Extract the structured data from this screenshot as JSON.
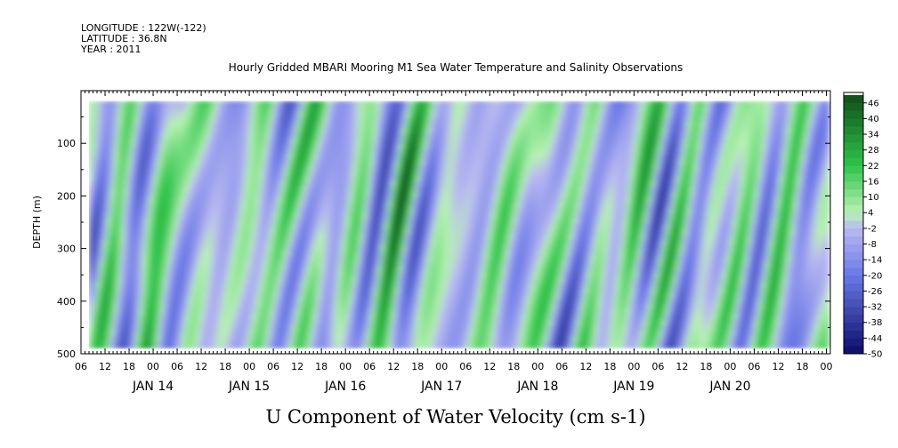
{
  "header": {
    "longitude": "LONGITUDE : 122W(-122)",
    "latitude": "LATITUDE : 36.8N",
    "year": "YEAR : 2011"
  },
  "chart_data": {
    "type": "heatmap",
    "title": "Hourly Gridded MBARI Mooring M1 Sea Water Temperature and Salinity Observations",
    "xlabel": "U Component of Water Velocity (cm s-1)",
    "ylabel": "DEPTH (m)",
    "x_axis": {
      "start": "2011-01-13T06:00",
      "end": "2011-01-21T01:00",
      "hour_tick_labels": [
        "06",
        "12",
        "18",
        "00",
        "06",
        "12",
        "18",
        "00",
        "06",
        "12",
        "18",
        "00",
        "06",
        "12",
        "18",
        "00",
        "06",
        "12",
        "18",
        "00",
        "06",
        "12",
        "18",
        "00",
        "06",
        "12",
        "18",
        "00",
        "06",
        "12",
        "18",
        "00"
      ],
      "day_labels": [
        "JAN 14",
        "JAN 15",
        "JAN 16",
        "JAN 17",
        "JAN 18",
        "JAN 19",
        "JAN 20"
      ],
      "data_start": "2011-01-13T08:00",
      "data_end": "2011-01-21T01:00"
    },
    "y_axis": {
      "range": [
        0,
        500
      ],
      "inverted": true,
      "tick_labels": [
        "100",
        "200",
        "300",
        "400",
        "500"
      ],
      "data_depth_min": 20,
      "data_depth_max": 490
    },
    "colorbar": {
      "range": [
        -50,
        50
      ],
      "step": 3,
      "tick_labels": [
        "46",
        "40",
        "34",
        "28",
        "22",
        "16",
        "10",
        "4",
        "-2",
        "-8",
        "-14",
        "-20",
        "-26",
        "-32",
        "-38",
        "-44",
        "-50"
      ],
      "colors": {
        "strong_positive": "#0f4a18",
        "positive": "#2fc44a",
        "weak_positive": "#b8f2b4",
        "weak_negative": "#b8b8f2",
        "negative": "#6a78e6",
        "strong_negative": "#0b0b6a"
      }
    },
    "field_note": "U velocity field (cm s-1) alternating between weak positive (green) and weak negative (blue) bands, mostly within about -20 to +20"
  }
}
